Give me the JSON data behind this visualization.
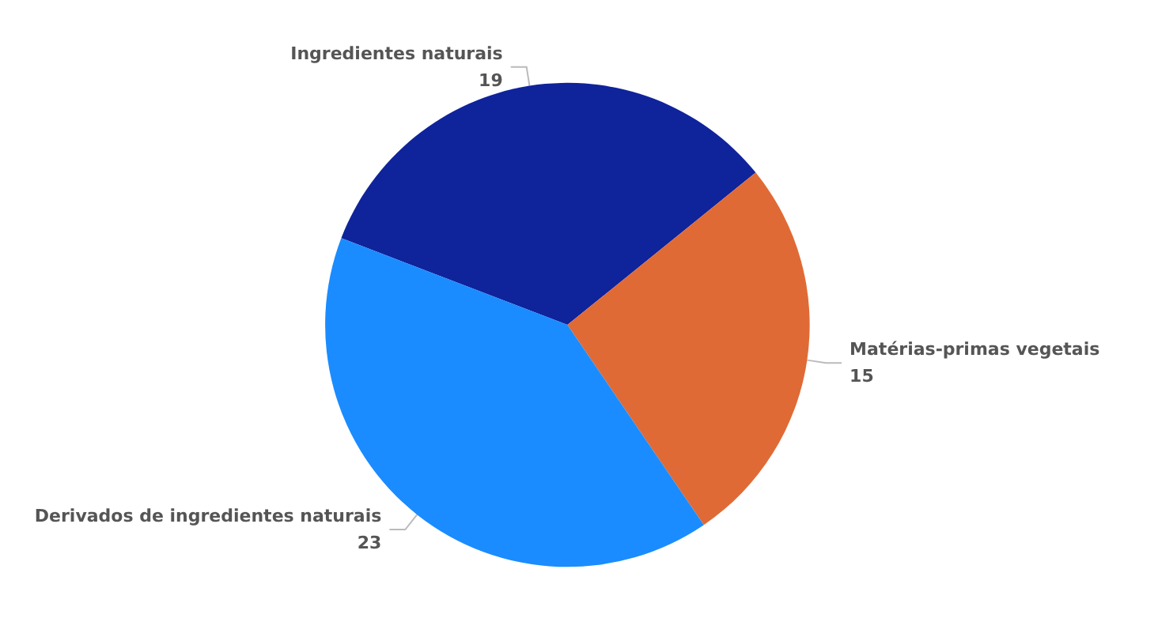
{
  "chart_data": {
    "type": "pie",
    "categories": [
      "Ingredientes naturais",
      "Matérias-primas vegetais",
      "Derivados de ingredientes naturais"
    ],
    "values": [
      19,
      15,
      23
    ],
    "colors": [
      "#0f239b",
      "#e06a35",
      "#1a8cff"
    ],
    "data_labels": true,
    "legend": false
  }
}
